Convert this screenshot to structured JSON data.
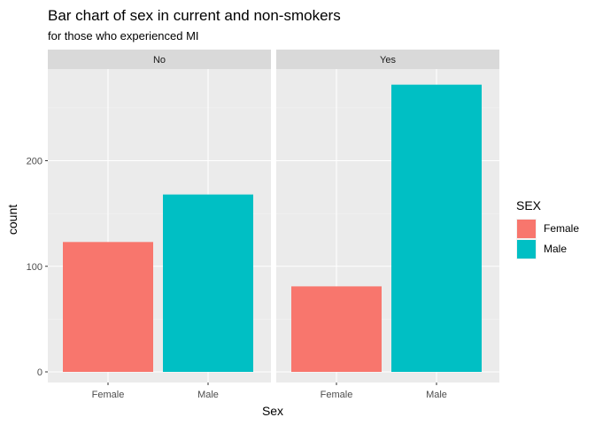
{
  "chart_data": {
    "type": "bar",
    "title": "Bar chart of sex in current and non-smokers",
    "subtitle": "for those who experienced MI",
    "xlabel": "Sex",
    "ylabel": "count",
    "ylim": [
      0,
      290
    ],
    "yticks": [
      0,
      100,
      200
    ],
    "grid": true,
    "legend": {
      "title": "SEX",
      "position": "right"
    },
    "facets": [
      {
        "label": "No",
        "categories": [
          "Female",
          "Male"
        ],
        "values": [
          123,
          168
        ]
      },
      {
        "label": "Yes",
        "categories": [
          "Female",
          "Male"
        ],
        "values": [
          81,
          272
        ]
      }
    ],
    "series": [
      {
        "name": "Female",
        "color": "#F8766D"
      },
      {
        "name": "Male",
        "color": "#00BFC4"
      }
    ]
  }
}
